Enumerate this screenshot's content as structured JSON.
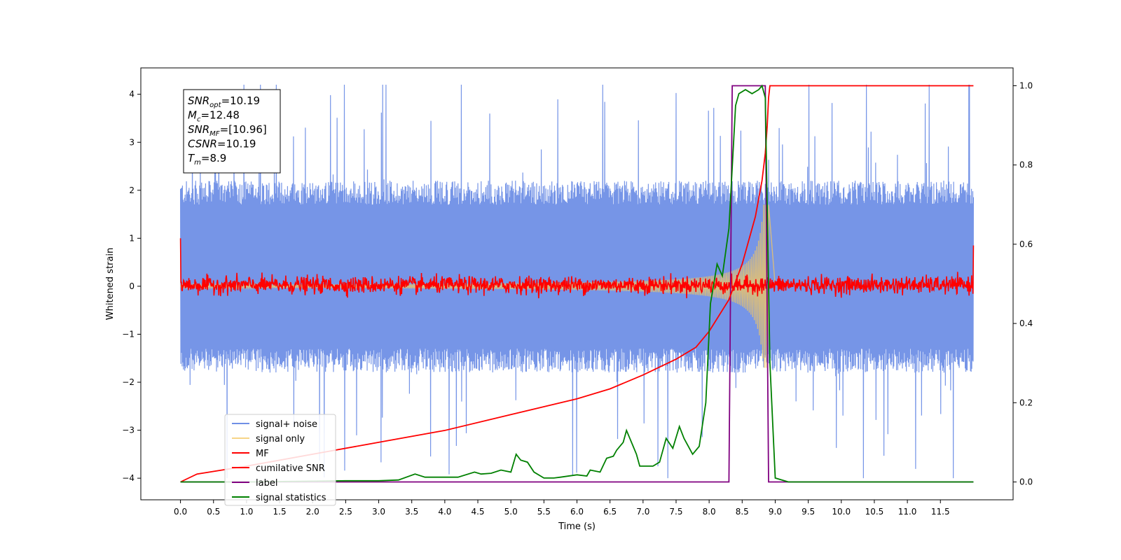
{
  "chart_data": {
    "type": "line",
    "title": "",
    "xlabel": "Time (s)",
    "ylabel": "Whitened strain",
    "xlim": [
      -0.6,
      12.6
    ],
    "ylim": [
      -4.45,
      4.55
    ],
    "y2lim": [
      -0.045,
      1.045
    ],
    "xticks": [
      "0.0",
      "0.5",
      "1.0",
      "1.5",
      "2.0",
      "2.5",
      "3.0",
      "3.5",
      "4.0",
      "4.5",
      "5.0",
      "5.5",
      "6.0",
      "6.5",
      "7.0",
      "7.5",
      "8.0",
      "8.5",
      "9.0",
      "9.5",
      "10.0",
      "10.5",
      "11.0",
      "11.5"
    ],
    "yticks": [
      "−4",
      "−3",
      "−2",
      "−1",
      "0",
      "1",
      "2",
      "3",
      "4"
    ],
    "y2ticks": [
      "0.0",
      "0.2",
      "0.4",
      "0.6",
      "0.8",
      "1.0"
    ],
    "grid": false,
    "legend_position": "lower-left",
    "annotation": [
      {
        "base": "SNR",
        "sub": "opt",
        "rest": "=10.19"
      },
      {
        "base": "M",
        "sub": "c",
        "rest": "=12.48"
      },
      {
        "base": "SNR",
        "sub": "MF",
        "rest": "=[10.96]"
      },
      {
        "base": "CSNR",
        "sub": "",
        "rest": "=10.19"
      },
      {
        "base": "T",
        "sub": "m",
        "rest": "=8.9"
      }
    ],
    "series": [
      {
        "name": "signal+ noise",
        "color": "#6f8fe6",
        "axis": "left",
        "kind": "noise",
        "t_range": [
          0,
          12.0
        ],
        "typical_range": [
          -1.8,
          2.2
        ],
        "peak_range": [
          -4.0,
          4.2
        ]
      },
      {
        "name": "signal only",
        "color": "#f5c85f",
        "axis": "left",
        "kind": "chirp",
        "t_range": [
          0,
          9.0
        ],
        "coalescence_time": 8.9,
        "max_amplitude": 1.7
      },
      {
        "name": "MF",
        "color": "#ff0000",
        "axis": "left",
        "kind": "noise",
        "t_range": [
          0,
          12.0
        ],
        "typical_range": [
          -0.15,
          0.2
        ],
        "edge_value": 1.0
      },
      {
        "name": "cumilative SNR",
        "color": "#ff0000",
        "axis": "right",
        "points": [
          [
            0,
            0.0
          ],
          [
            0.25,
            0.02
          ],
          [
            1,
            0.04
          ],
          [
            2,
            0.07
          ],
          [
            3,
            0.1
          ],
          [
            4,
            0.13
          ],
          [
            5,
            0.17
          ],
          [
            5.5,
            0.19
          ],
          [
            6,
            0.21
          ],
          [
            6.5,
            0.235
          ],
          [
            7,
            0.27
          ],
          [
            7.5,
            0.31
          ],
          [
            7.8,
            0.34
          ],
          [
            8,
            0.38
          ],
          [
            8.3,
            0.46
          ],
          [
            8.5,
            0.55
          ],
          [
            8.7,
            0.67
          ],
          [
            8.8,
            0.76
          ],
          [
            8.85,
            0.83
          ],
          [
            8.88,
            0.9
          ],
          [
            8.9,
            0.97
          ],
          [
            8.92,
            1.0
          ],
          [
            12.0,
            1.0
          ]
        ]
      },
      {
        "name": "label",
        "color": "#800080",
        "axis": "right",
        "points": [
          [
            0,
            0
          ],
          [
            8.3,
            0
          ],
          [
            8.35,
            1
          ],
          [
            8.85,
            1
          ],
          [
            8.9,
            0
          ],
          [
            12.0,
            0
          ]
        ]
      },
      {
        "name": "signal statistics",
        "color": "#008000",
        "axis": "right",
        "points": [
          [
            0,
            0
          ],
          [
            1,
            0
          ],
          [
            2,
            0.002
          ],
          [
            2.5,
            0.003
          ],
          [
            3,
            0.003
          ],
          [
            3.3,
            0.005
          ],
          [
            3.55,
            0.02
          ],
          [
            3.7,
            0.012
          ],
          [
            4,
            0.012
          ],
          [
            4.2,
            0.012
          ],
          [
            4.45,
            0.025
          ],
          [
            4.55,
            0.02
          ],
          [
            4.7,
            0.022
          ],
          [
            4.85,
            0.03
          ],
          [
            5.0,
            0.025
          ],
          [
            5.08,
            0.07
          ],
          [
            5.15,
            0.055
          ],
          [
            5.25,
            0.05
          ],
          [
            5.35,
            0.025
          ],
          [
            5.5,
            0.01
          ],
          [
            5.65,
            0.01
          ],
          [
            5.75,
            0.012
          ],
          [
            6.0,
            0.018
          ],
          [
            6.15,
            0.015
          ],
          [
            6.2,
            0.03
          ],
          [
            6.35,
            0.025
          ],
          [
            6.45,
            0.06
          ],
          [
            6.55,
            0.065
          ],
          [
            6.6,
            0.08
          ],
          [
            6.7,
            0.1
          ],
          [
            6.75,
            0.13
          ],
          [
            6.8,
            0.11
          ],
          [
            6.9,
            0.07
          ],
          [
            6.95,
            0.04
          ],
          [
            7.15,
            0.04
          ],
          [
            7.25,
            0.05
          ],
          [
            7.35,
            0.11
          ],
          [
            7.45,
            0.085
          ],
          [
            7.55,
            0.14
          ],
          [
            7.62,
            0.11
          ],
          [
            7.75,
            0.07
          ],
          [
            7.85,
            0.09
          ],
          [
            7.95,
            0.2
          ],
          [
            8.02,
            0.45
          ],
          [
            8.12,
            0.55
          ],
          [
            8.2,
            0.52
          ],
          [
            8.3,
            0.64
          ],
          [
            8.4,
            0.95
          ],
          [
            8.45,
            0.98
          ],
          [
            8.55,
            0.99
          ],
          [
            8.65,
            0.98
          ],
          [
            8.75,
            0.99
          ],
          [
            8.8,
            1.0
          ],
          [
            8.85,
            0.97
          ],
          [
            8.92,
            0.3
          ],
          [
            9.0,
            0.01
          ],
          [
            9.2,
            0.0
          ],
          [
            12.0,
            0.0
          ]
        ]
      }
    ]
  }
}
